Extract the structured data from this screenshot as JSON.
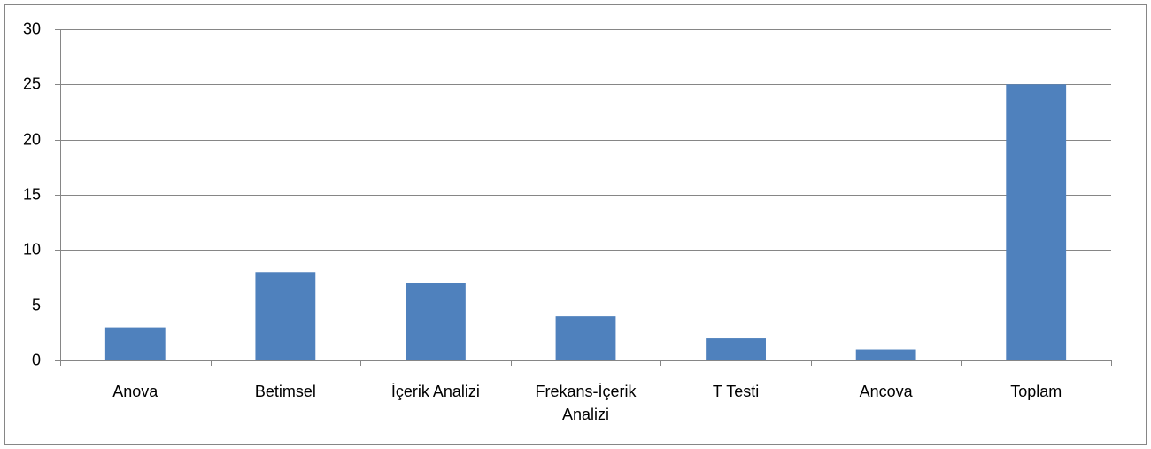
{
  "chart_data": {
    "type": "bar",
    "categories": [
      "Anova",
      "Betimsel",
      "İçerik Analizi",
      "Frekans-İçerik Analizi",
      "T Testi",
      "Ancova",
      "Toplam"
    ],
    "values": [
      3,
      8,
      7,
      4,
      2,
      1,
      25
    ],
    "color": "#4f81bd",
    "ylim": [
      0,
      30
    ],
    "yticks": [
      0,
      5,
      10,
      15,
      20,
      25,
      30
    ],
    "grid": true
  }
}
